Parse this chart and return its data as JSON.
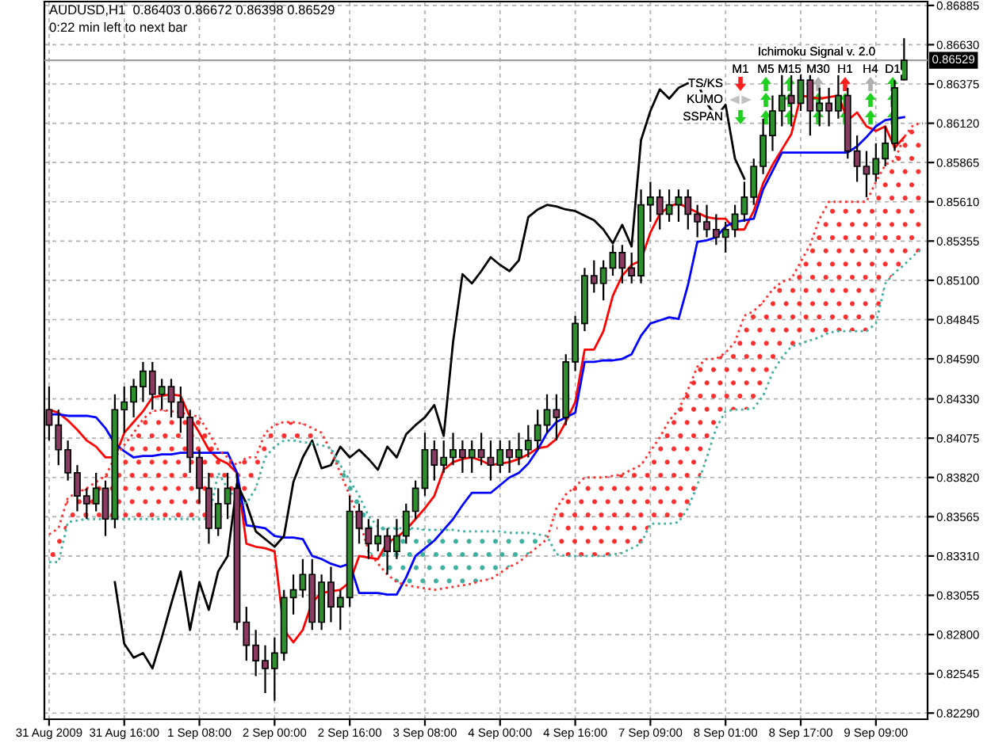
{
  "chart_data": {
    "type": "candlestick",
    "title": "AUDUSD,H1  0.86403 0.86672 0.86398 0.86529",
    "subtitle": "0:22 min left to next bar",
    "annotations": [
      "Ichimoku Signal v. 2.0",
      "M1",
      "M5",
      "M15",
      "M30",
      "H1",
      "H4",
      "D1",
      "TS/KS",
      "KUMO",
      "SSPAN"
    ],
    "categories": [
      "31 Aug 2009",
      null,
      null,
      null,
      null,
      null,
      null,
      null,
      "31 Aug 16:00",
      null,
      null,
      null,
      null,
      null,
      null,
      null,
      "1 Sep 08:00",
      null,
      null,
      null,
      null,
      null,
      null,
      null,
      "2 Sep 00:00",
      null,
      null,
      null,
      null,
      null,
      null,
      null,
      "2 Sep 16:00",
      null,
      null,
      null,
      null,
      null,
      null,
      null,
      "3 Sep 08:00",
      null,
      null,
      null,
      null,
      null,
      null,
      null,
      "4 Sep 00:00",
      null,
      null,
      null,
      null,
      null,
      null,
      null,
      "4 Sep 16:00",
      null,
      null,
      null,
      null,
      null,
      null,
      null,
      "7 Sep 09:00",
      null,
      null,
      null,
      null,
      null,
      null,
      null,
      "8 Sep 01:00",
      null,
      null,
      null,
      null,
      null,
      null,
      null,
      "8 Sep 17:00",
      null,
      null,
      null,
      null,
      null,
      null,
      null,
      "9 Sep 09:00",
      null,
      null,
      null,
      null,
      null
    ],
    "ohlc": [
      [
        0.8426,
        0.8441,
        0.8406,
        0.8416
      ],
      [
        0.8416,
        0.8426,
        0.839,
        0.84
      ],
      [
        0.84,
        0.8406,
        0.838,
        0.8385
      ],
      [
        0.8385,
        0.839,
        0.836,
        0.837
      ],
      [
        0.837,
        0.8375,
        0.8355,
        0.8365
      ],
      [
        0.8365,
        0.8385,
        0.836,
        0.8375
      ],
      [
        0.8375,
        0.838,
        0.8344,
        0.8355
      ],
      [
        0.8355,
        0.8436,
        0.8349,
        0.8426
      ],
      [
        0.8426,
        0.8441,
        0.8411,
        0.8431
      ],
      [
        0.8431,
        0.8446,
        0.8421,
        0.8441
      ],
      [
        0.8441,
        0.8457,
        0.8431,
        0.8451
      ],
      [
        0.8451,
        0.8457,
        0.8426,
        0.8436
      ],
      [
        0.8436,
        0.8446,
        0.8426,
        0.8441
      ],
      [
        0.8441,
        0.8446,
        0.8421,
        0.8431
      ],
      [
        0.8431,
        0.8441,
        0.8411,
        0.8421
      ],
      [
        0.8421,
        0.8426,
        0.8385,
        0.8395
      ],
      [
        0.8395,
        0.84,
        0.8365,
        0.8375
      ],
      [
        0.8375,
        0.8385,
        0.8339,
        0.8349
      ],
      [
        0.8349,
        0.8375,
        0.8344,
        0.8365
      ],
      [
        0.8365,
        0.8385,
        0.8355,
        0.8375
      ],
      [
        0.8375,
        0.8385,
        0.8283,
        0.8288
      ],
      [
        0.8288,
        0.8298,
        0.8263,
        0.8273
      ],
      [
        0.8273,
        0.8283,
        0.8253,
        0.8263
      ],
      [
        0.8263,
        0.8273,
        0.8242,
        0.8258
      ],
      [
        0.8258,
        0.8278,
        0.8237,
        0.8268
      ],
      [
        0.8268,
        0.8309,
        0.8263,
        0.8304
      ],
      [
        0.8304,
        0.8319,
        0.8293,
        0.8309
      ],
      [
        0.8309,
        0.8329,
        0.8304,
        0.8319
      ],
      [
        0.8319,
        0.8329,
        0.8283,
        0.8288
      ],
      [
        0.8288,
        0.8319,
        0.8283,
        0.8314
      ],
      [
        0.8314,
        0.8324,
        0.8288,
        0.8298
      ],
      [
        0.8298,
        0.8309,
        0.8283,
        0.8304
      ],
      [
        0.8304,
        0.837,
        0.8298,
        0.836
      ],
      [
        0.836,
        0.8365,
        0.8339,
        0.8349
      ],
      [
        0.8349,
        0.8355,
        0.8329,
        0.8339
      ],
      [
        0.8339,
        0.8355,
        0.8334,
        0.8344
      ],
      [
        0.8344,
        0.8349,
        0.8319,
        0.8334
      ],
      [
        0.8334,
        0.8355,
        0.8329,
        0.8344
      ],
      [
        0.8344,
        0.8365,
        0.8339,
        0.836
      ],
      [
        0.836,
        0.838,
        0.8355,
        0.8375
      ],
      [
        0.8375,
        0.8411,
        0.837,
        0.84
      ],
      [
        0.84,
        0.8406,
        0.838,
        0.839
      ],
      [
        0.839,
        0.8406,
        0.8385,
        0.8395
      ],
      [
        0.8395,
        0.8411,
        0.839,
        0.84
      ],
      [
        0.84,
        0.8406,
        0.8385,
        0.8395
      ],
      [
        0.8395,
        0.8406,
        0.8385,
        0.84
      ],
      [
        0.84,
        0.8411,
        0.839,
        0.8395
      ],
      [
        0.8395,
        0.8406,
        0.838,
        0.839
      ],
      [
        0.839,
        0.8406,
        0.8385,
        0.84
      ],
      [
        0.84,
        0.8406,
        0.8385,
        0.8395
      ],
      [
        0.8395,
        0.8411,
        0.839,
        0.84
      ],
      [
        0.84,
        0.8416,
        0.8395,
        0.8406
      ],
      [
        0.8406,
        0.8426,
        0.84,
        0.8416
      ],
      [
        0.8416,
        0.8436,
        0.8411,
        0.8426
      ],
      [
        0.8426,
        0.8436,
        0.8406,
        0.8421
      ],
      [
        0.8421,
        0.8462,
        0.8416,
        0.8457
      ],
      [
        0.8457,
        0.8487,
        0.8451,
        0.8482
      ],
      [
        0.8482,
        0.8518,
        0.8477,
        0.8513
      ],
      [
        0.8513,
        0.8523,
        0.8502,
        0.8508
      ],
      [
        0.8508,
        0.8523,
        0.8497,
        0.8518
      ],
      [
        0.8518,
        0.8533,
        0.8513,
        0.8528
      ],
      [
        0.8528,
        0.8533,
        0.8508,
        0.8518
      ],
      [
        0.8518,
        0.8528,
        0.8508,
        0.8513
      ],
      [
        0.8513,
        0.8569,
        0.8508,
        0.8559
      ],
      [
        0.8559,
        0.8574,
        0.8548,
        0.8564
      ],
      [
        0.8564,
        0.8569,
        0.8543,
        0.8553
      ],
      [
        0.8553,
        0.8569,
        0.8548,
        0.8559
      ],
      [
        0.8559,
        0.8569,
        0.8548,
        0.8564
      ],
      [
        0.8564,
        0.8569,
        0.8543,
        0.8553
      ],
      [
        0.8553,
        0.8559,
        0.8538,
        0.8548
      ],
      [
        0.8548,
        0.8559,
        0.8538,
        0.8543
      ],
      [
        0.8543,
        0.8553,
        0.8533,
        0.8538
      ],
      [
        0.8538,
        0.8548,
        0.8528,
        0.8543
      ],
      [
        0.8543,
        0.8559,
        0.8538,
        0.8553
      ],
      [
        0.8553,
        0.8574,
        0.8548,
        0.8564
      ],
      [
        0.8564,
        0.8589,
        0.8559,
        0.8584
      ],
      [
        0.8584,
        0.8615,
        0.8579,
        0.8604
      ],
      [
        0.8604,
        0.863,
        0.8594,
        0.862
      ],
      [
        0.862,
        0.8645,
        0.861,
        0.863
      ],
      [
        0.863,
        0.8645,
        0.861,
        0.8625
      ],
      [
        0.8625,
        0.865,
        0.862,
        0.864
      ],
      [
        0.864,
        0.8645,
        0.8604,
        0.862
      ],
      [
        0.862,
        0.8635,
        0.861,
        0.8625
      ],
      [
        0.8625,
        0.8635,
        0.861,
        0.862
      ],
      [
        0.862,
        0.8645,
        0.8615,
        0.863
      ],
      [
        0.863,
        0.8635,
        0.8589,
        0.8594
      ],
      [
        0.8594,
        0.8604,
        0.8574,
        0.8584
      ],
      [
        0.8584,
        0.8594,
        0.8564,
        0.8579
      ],
      [
        0.8579,
        0.8599,
        0.8574,
        0.8589
      ],
      [
        0.8589,
        0.861,
        0.8584,
        0.8599
      ],
      [
        0.8599,
        0.864,
        0.8594,
        0.8635
      ],
      [
        0.86403,
        0.86672,
        0.86398,
        0.86529
      ],
      null,
      null
    ],
    "colors": [
      "#8b3a62",
      "#8b3a62",
      "#8b3a62",
      "#8b3a62",
      "#8b3a62",
      "#2f8f2f",
      "#8b3a62",
      "#2f8f2f",
      "#2f8f2f",
      "#2f8f2f",
      "#2f8f2f",
      "#8b3a62",
      "#2f8f2f",
      "#8b3a62",
      "#8b3a62",
      "#8b3a62",
      "#8b3a62",
      "#8b3a62",
      "#2f8f2f",
      "#2f8f2f",
      "#8b3a62",
      "#8b3a62",
      "#8b3a62",
      "#8b3a62",
      "#2f8f2f",
      "#2f8f2f",
      "#2f8f2f",
      "#2f8f2f",
      "#8b3a62",
      "#2f8f2f",
      "#8b3a62",
      "#2f8f2f",
      "#2f8f2f",
      "#8b3a62",
      "#8b3a62",
      "#2f8f2f",
      "#8b3a62",
      "#2f8f2f",
      "#2f8f2f",
      "#2f8f2f",
      "#2f8f2f",
      "#8b3a62",
      "#2f8f2f",
      "#2f8f2f",
      "#8b3a62",
      "#2f8f2f",
      "#8b3a62",
      "#8b3a62",
      "#2f8f2f",
      "#8b3a62",
      "#2f8f2f",
      "#2f8f2f",
      "#2f8f2f",
      "#2f8f2f",
      "#8b3a62",
      "#2f8f2f",
      "#2f8f2f",
      "#2f8f2f",
      "#8b3a62",
      "#2f8f2f",
      "#2f8f2f",
      "#8b3a62",
      "#8b3a62",
      "#2f8f2f",
      "#2f8f2f",
      "#8b3a62",
      "#2f8f2f",
      "#2f8f2f",
      "#8b3a62",
      "#8b3a62",
      "#8b3a62",
      "#8b3a62",
      "#2f8f2f",
      "#2f8f2f",
      "#2f8f2f",
      "#2f8f2f",
      "#2f8f2f",
      "#2f8f2f",
      "#2f8f2f",
      "#8b3a62",
      "#2f8f2f",
      "#8b3a62",
      "#2f8f2f",
      "#8b3a62",
      "#2f8f2f",
      "#8b3a62",
      "#8b3a62",
      "#8b3a62",
      "#2f8f2f",
      "#2f8f2f",
      "#2f8f2f",
      "#2f8f2f",
      null,
      null
    ],
    "series": [
      {
        "type": "line",
        "color": "#ff0000",
        "values": [
          0.8426,
          0.8424,
          0.8419,
          0.8413,
          0.8406,
          0.8402,
          0.8395,
          0.8395,
          0.8411,
          0.8418,
          0.8425,
          0.8434,
          0.8435,
          0.8436,
          0.8435,
          0.8421,
          0.8411,
          0.84,
          0.8394,
          0.8391,
          0.8385,
          0.8339,
          0.8337,
          0.8336,
          0.8334,
          0.8283,
          0.8275,
          0.8283,
          0.8301,
          0.8307,
          0.8308,
          0.8309,
          0.8314,
          0.8331,
          0.833,
          0.8329,
          0.834,
          0.8343,
          0.8348,
          0.8355,
          0.8362,
          0.837,
          0.8387,
          0.8392,
          0.8394,
          0.8395,
          0.8393,
          0.839,
          0.8391,
          0.8392,
          0.8394,
          0.8397,
          0.8401,
          0.8402,
          0.8407,
          0.8418,
          0.8431,
          0.8465,
          0.8465,
          0.8477,
          0.85,
          0.8513,
          0.852,
          0.8523,
          0.8541,
          0.8553,
          0.8558,
          0.856,
          0.8557,
          0.8554,
          0.8551,
          0.855,
          0.855,
          0.8543,
          0.8543,
          0.8555,
          0.8573,
          0.8585,
          0.8595,
          0.8605,
          0.863,
          0.8629,
          0.8628,
          0.8629,
          0.863,
          0.8614,
          0.8619,
          0.861,
          0.8607,
          0.861,
          0.8596,
          0.8603,
          null,
          null
        ]
      },
      {
        "type": "line",
        "color": "#0000ff",
        "values": [
          0.8423,
          0.8423,
          0.8422,
          0.8422,
          0.8422,
          0.8421,
          0.8414,
          0.8404,
          0.8399,
          0.8395,
          0.8396,
          0.8396,
          0.8397,
          0.8397,
          0.8398,
          0.8398,
          0.8398,
          0.8398,
          0.8398,
          0.8398,
          0.8385,
          0.8351,
          0.835,
          0.8349,
          0.8344,
          0.8343,
          0.8343,
          0.8342,
          0.8331,
          0.8329,
          0.8326,
          0.8324,
          0.8326,
          0.8307,
          0.8307,
          0.8307,
          0.8306,
          0.8306,
          0.8317,
          0.8331,
          0.8336,
          0.8341,
          0.8348,
          0.8355,
          0.8364,
          0.8372,
          0.8372,
          0.8372,
          0.8377,
          0.8382,
          0.8385,
          0.8391,
          0.84,
          0.8411,
          0.8418,
          0.8421,
          0.8424,
          0.8457,
          0.8457,
          0.8458,
          0.8458,
          0.8459,
          0.8462,
          0.8474,
          0.8482,
          0.8484,
          0.8486,
          0.8485,
          0.8507,
          0.8535,
          0.8536,
          0.8538,
          0.8545,
          0.8548,
          0.8549,
          0.855,
          0.8569,
          0.8581,
          0.8593,
          0.8593,
          0.8593,
          0.8593,
          0.8593,
          0.8593,
          0.8593,
          0.8593,
          0.8597,
          0.8603,
          0.861,
          0.8614,
          0.8615,
          0.8616,
          null,
          null
        ]
      },
      {
        "type": "line",
        "color": "#000000",
        "values": [
          null,
          null,
          null,
          null,
          null,
          null,
          null,
          0.8314,
          0.8274,
          0.8265,
          0.8268,
          0.8258,
          0.8278,
          0.83,
          0.8321,
          0.8283,
          0.8314,
          0.8296,
          0.8321,
          0.8331,
          0.8378,
          0.8365,
          0.8347,
          0.8342,
          0.8337,
          0.8344,
          0.8379,
          0.8395,
          0.8406,
          0.8388,
          0.839,
          0.8402,
          0.8395,
          0.84,
          0.8394,
          0.8387,
          0.8402,
          0.8395,
          0.841,
          0.8416,
          0.8421,
          0.8429,
          0.8409,
          0.847,
          0.8514,
          0.8508,
          0.8516,
          0.8525,
          0.852,
          0.8516,
          0.8523,
          0.8551,
          0.8556,
          0.8559,
          0.8558,
          0.8556,
          0.8555,
          0.8552,
          0.8549,
          0.8543,
          0.8534,
          0.8546,
          0.8532,
          0.8601,
          0.862,
          0.8634,
          0.8628,
          0.8635,
          0.8638,
          0.8638,
          0.8625,
          0.8616,
          0.8624,
          0.8589,
          0.8576,
          null,
          null,
          null,
          null,
          null,
          null,
          null,
          null,
          null,
          null,
          null,
          null,
          null,
          null,
          null,
          null,
          null,
          null,
          null
        ]
      },
      {
        "type": "line",
        "color": "#ff3030",
        "line_style": "dotted",
        "values": [
          0.8345,
          0.8349,
          0.8369,
          0.8372,
          0.8375,
          0.8379,
          0.8383,
          0.8395,
          0.8403,
          0.8411,
          0.842,
          0.8425,
          0.8426,
          0.8425,
          0.8424,
          0.8423,
          0.8421,
          0.8411,
          0.84,
          0.8395,
          0.839,
          0.8395,
          0.8395,
          0.8411,
          0.8416,
          0.8418,
          0.8418,
          0.8417,
          0.8414,
          0.8411,
          0.8399,
          0.8385,
          0.837,
          0.8355,
          0.8334,
          0.8326,
          0.8319,
          0.8314,
          0.8312,
          0.8311,
          0.831,
          0.8309,
          0.831,
          0.8311,
          0.8312,
          0.8313,
          0.8315,
          0.8316,
          0.832,
          0.8324,
          0.8327,
          0.8332,
          0.8337,
          0.8342,
          0.8362,
          0.8371,
          0.8376,
          0.8382,
          0.8382,
          0.8382,
          0.8383,
          0.8384,
          0.8387,
          0.839,
          0.8399,
          0.8408,
          0.8419,
          0.8426,
          0.8439,
          0.8454,
          0.8459,
          0.8459,
          0.8463,
          0.847,
          0.8487,
          0.849,
          0.8496,
          0.8504,
          0.8509,
          0.8511,
          0.8522,
          0.8533,
          0.855,
          0.8561,
          0.8561,
          0.8561,
          0.8561,
          0.8561,
          0.8574,
          0.8585,
          0.8588,
          0.8603,
          0.8611,
          0.8612
        ],
        "upper": [
          0.8345,
          0.8349,
          0.8369,
          0.8372,
          0.8375,
          0.8379,
          0.8383,
          0.8395,
          0.8403,
          0.8411,
          0.842,
          0.8425,
          0.8426,
          0.8425,
          0.8424,
          0.8423,
          0.8421,
          0.8411,
          0.84,
          0.8395,
          0.839,
          0.8395,
          0.8395,
          0.8411,
          0.8416,
          0.8418,
          0.8418,
          0.8417,
          0.8414,
          0.8411,
          null,
          null,
          null,
          null,
          null,
          null,
          null,
          null,
          null,
          null,
          null,
          null,
          null,
          null,
          null,
          null,
          null,
          null,
          null,
          null,
          null,
          null,
          null,
          null,
          0.8362,
          0.8371,
          0.8376,
          0.8382,
          0.8382,
          0.8382,
          0.8383,
          0.8384,
          0.8387,
          0.839,
          0.8399,
          0.8408,
          0.8419,
          0.8426,
          0.8439,
          0.8454,
          0.8459,
          0.8459,
          0.8463,
          0.847,
          0.8487,
          0.849,
          0.8496,
          0.8504,
          0.8509,
          0.8511,
          0.8522,
          0.8533,
          0.855,
          0.8561,
          0.8561,
          0.8561,
          0.8561,
          0.8561,
          0.8574,
          0.8585,
          0.8588,
          0.8603,
          0.8611,
          0.8612
        ],
        "lower": [
          0.8327,
          0.8327,
          0.8353,
          0.8354,
          0.8355,
          0.8355,
          0.8355,
          0.8355,
          0.8355,
          0.8355,
          0.8355,
          0.8355,
          0.8355,
          0.8355,
          0.8355,
          0.8355,
          0.8355,
          0.8355,
          0.8385,
          0.8375,
          0.8367,
          0.8365,
          0.8375,
          0.8395,
          0.8402,
          0.8406,
          0.8406,
          0.8405,
          0.8404,
          0.8403,
          null,
          null,
          null,
          null,
          null,
          null,
          null,
          null,
          null,
          null,
          null,
          null,
          null,
          null,
          null,
          null,
          null,
          null,
          null,
          null,
          null,
          null,
          null,
          null,
          0.8332,
          0.8331,
          0.8331,
          0.8331,
          0.8331,
          0.8331,
          0.8332,
          0.8333,
          0.8336,
          0.8339,
          0.8352,
          0.8352,
          0.8352,
          0.8353,
          0.8362,
          0.8377,
          0.8395,
          0.8414,
          0.8425,
          0.8426,
          0.8426,
          0.8427,
          0.8435,
          0.845,
          0.846,
          0.8467,
          0.8469,
          0.8471,
          0.8473,
          0.8476,
          0.8477,
          0.8477,
          0.8477,
          0.8477,
          0.8482,
          0.8508,
          0.8515,
          0.852,
          0.8526,
          0.8531
        ]
      },
      {
        "type": "line",
        "color": "#40b0a0",
        "line_style": "dotted",
        "values": [
          0.8327,
          0.8327,
          0.8353,
          0.8354,
          0.8355,
          0.8355,
          0.8355,
          0.8355,
          0.8355,
          0.8355,
          0.8355,
          0.8355,
          0.8355,
          0.8355,
          0.8355,
          0.8355,
          0.8355,
          0.8355,
          0.8385,
          0.8375,
          0.8367,
          0.8365,
          0.8375,
          0.8395,
          0.8402,
          0.8406,
          0.8406,
          0.8405,
          0.8404,
          0.8403,
          0.8401,
          0.839,
          0.838,
          0.837,
          0.8357,
          0.835,
          0.8349,
          0.8349,
          0.8349,
          0.8349,
          0.8348,
          0.8348,
          0.8348,
          0.8348,
          0.8347,
          0.8347,
          0.8347,
          0.8347,
          0.8347,
          0.8346,
          0.8346,
          0.8346,
          0.8345,
          0.8344,
          0.8332,
          0.8331,
          0.8331,
          0.8331,
          0.8331,
          0.8331,
          0.8332,
          0.8333,
          0.8336,
          0.8339,
          0.8352,
          0.8352,
          0.8352,
          0.8353,
          0.8362,
          0.8377,
          0.8395,
          0.8414,
          0.8425,
          0.8426,
          0.8426,
          0.8427,
          0.8435,
          0.845,
          0.846,
          0.8467,
          0.8469,
          0.8471,
          0.8473,
          0.8476,
          0.8477,
          0.8477,
          0.8477,
          0.8477,
          0.8482,
          0.8508,
          0.8515,
          0.852,
          0.8526,
          0.8531
        ],
        "upper": [
          null,
          null,
          null,
          null,
          null,
          null,
          null,
          null,
          null,
          null,
          null,
          null,
          null,
          null,
          null,
          null,
          null,
          null,
          null,
          null,
          null,
          null,
          null,
          null,
          null,
          null,
          null,
          null,
          null,
          null,
          0.8401,
          0.839,
          0.838,
          0.837,
          0.8357,
          0.835,
          0.8349,
          0.8349,
          0.8349,
          0.8349,
          0.8348,
          0.8348,
          0.8348,
          0.8348,
          0.8347,
          0.8347,
          0.8347,
          0.8347,
          0.8347,
          0.8346,
          0.8346,
          0.8346,
          0.8345,
          0.8344,
          null,
          null,
          null,
          null,
          null,
          null,
          null,
          null,
          null,
          null,
          null,
          null,
          null,
          null,
          null,
          null,
          null,
          null,
          null,
          null,
          null,
          null,
          null,
          null,
          null,
          null,
          null,
          null,
          null,
          null,
          null,
          null,
          null,
          null,
          null,
          null,
          null,
          null,
          null,
          null
        ],
        "lower": [
          null,
          null,
          null,
          null,
          null,
          null,
          null,
          null,
          null,
          null,
          null,
          null,
          null,
          null,
          null,
          null,
          null,
          null,
          null,
          null,
          null,
          null,
          null,
          null,
          null,
          null,
          null,
          null,
          null,
          null,
          0.8399,
          0.8385,
          0.837,
          0.8355,
          0.8334,
          0.8326,
          0.8319,
          0.8314,
          0.8312,
          0.8311,
          0.831,
          0.8309,
          0.831,
          0.8311,
          0.8312,
          0.8313,
          0.8315,
          0.8316,
          0.832,
          0.8324,
          0.8327,
          0.8332,
          0.8337,
          0.8342,
          null,
          null,
          null,
          null,
          null,
          null,
          null,
          null,
          null,
          null,
          null,
          null,
          null,
          null,
          null,
          null,
          null,
          null,
          null,
          null,
          null,
          null,
          null,
          null,
          null,
          null,
          null,
          null,
          null,
          null,
          null,
          null,
          null,
          null,
          null,
          null,
          null,
          null,
          null,
          null
        ]
      }
    ],
    "ylim": [
      0.8225,
      0.8691
    ],
    "yticks": [
      0.86885,
      {
        "value": 0.8663,
        "label": "0.86630"
      },
      0.86375,
      {
        "value": 0.8612,
        "label": "0.86120"
      },
      0.85865,
      {
        "value": 0.8561,
        "label": "0.85610"
      },
      0.85355,
      {
        "value": 0.851,
        "label": "0.85100"
      },
      0.84845,
      {
        "value": 0.8459,
        "label": "0.84590"
      },
      {
        "value": 0.8433,
        "label": "0.84330"
      },
      0.84075,
      {
        "value": 0.8382,
        "label": "0.83820"
      },
      0.83565,
      {
        "value": 0.8331,
        "label": "0.83310"
      },
      0.83055,
      {
        "value": 0.828,
        "label": "0.82800"
      },
      0.82545,
      {
        "value": 0.8229,
        "label": "0.82290"
      }
    ],
    "ref_lines": [
      {
        "axis": "y",
        "value": 0.86529,
        "label": "0.86529",
        "color": "#a0a0a0"
      }
    ],
    "grid": true,
    "legend": false
  }
}
